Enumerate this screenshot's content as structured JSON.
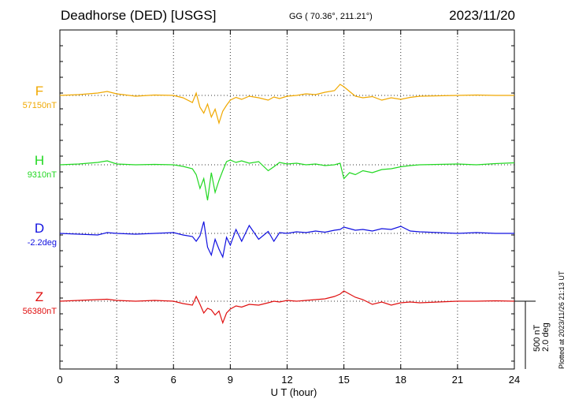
{
  "header": {
    "title": "Deadhorse (DED)  [USGS]",
    "coords": "GG ( 70.36°, 211.21°)",
    "date": "2023/11/20"
  },
  "axis": {
    "xlabel": "U T (hour)",
    "xticks": [
      "0",
      "3",
      "6",
      "9",
      "12",
      "15",
      "18",
      "21",
      "24"
    ]
  },
  "scale": {
    "nt": "500 nT",
    "deg": "2.0 deg"
  },
  "plotted_note": "Plotted at 2023/11/26 21:13 UT",
  "chart_data": {
    "type": "line",
    "x_range": [
      0,
      24
    ],
    "x_unit": "hour UT",
    "grid": true,
    "series": [
      {
        "name": "F",
        "baseline_label": "57150nT",
        "color": "#f0a800",
        "x": [
          0,
          1,
          2,
          2.5,
          3,
          4,
          5,
          6,
          6.5,
          7,
          7.2,
          7.4,
          7.6,
          7.8,
          8.0,
          8.2,
          8.4,
          8.6,
          8.8,
          9.0,
          9.3,
          9.6,
          10,
          10.5,
          11,
          11.3,
          11.6,
          12,
          12.5,
          13,
          13.5,
          14,
          14.5,
          14.8,
          15,
          15.3,
          15.6,
          16,
          16.5,
          17,
          17.5,
          18,
          18.5,
          19,
          20,
          21,
          22,
          23,
          24
        ],
        "values": [
          0,
          2,
          6,
          10,
          4,
          -2,
          1,
          0,
          -6,
          -18,
          6,
          -30,
          -45,
          -22,
          -55,
          -35,
          -70,
          -40,
          -25,
          -12,
          -5,
          -10,
          -2,
          -6,
          -12,
          -4,
          -8,
          -2,
          0,
          4,
          2,
          8,
          12,
          28,
          22,
          10,
          -2,
          -6,
          -3,
          -12,
          -6,
          -10,
          -5,
          -2,
          -1,
          0,
          1,
          0,
          0
        ]
      },
      {
        "name": "H",
        "baseline_label": "9310nT",
        "color": "#22d822",
        "x": [
          0,
          1,
          2,
          2.5,
          3,
          4,
          5,
          6,
          6.5,
          7,
          7.2,
          7.4,
          7.6,
          7.8,
          8.0,
          8.2,
          8.4,
          8.6,
          8.8,
          9.0,
          9.3,
          9.6,
          10,
          10.5,
          11,
          11.3,
          11.6,
          12,
          12.5,
          13,
          13.5,
          14,
          14.5,
          14.8,
          15,
          15.3,
          15.6,
          16,
          16.5,
          17,
          17.5,
          18,
          18.5,
          19,
          20,
          21,
          22,
          23,
          24
        ],
        "values": [
          0,
          2,
          6,
          10,
          2,
          0,
          1,
          0,
          -4,
          -10,
          -25,
          -60,
          -35,
          -90,
          -20,
          -70,
          -40,
          -15,
          8,
          12,
          6,
          10,
          4,
          8,
          -15,
          -5,
          6,
          2,
          4,
          0,
          2,
          -2,
          0,
          4,
          -35,
          -20,
          -25,
          -15,
          -20,
          -12,
          -10,
          -5,
          -2,
          0,
          1,
          2,
          0,
          3,
          5
        ]
      },
      {
        "name": "D",
        "baseline_label": "-2.2deg",
        "color": "#1010e0",
        "x": [
          0,
          1,
          2,
          2.5,
          3,
          4,
          5,
          6,
          6.5,
          7,
          7.2,
          7.4,
          7.6,
          7.8,
          8.0,
          8.2,
          8.4,
          8.6,
          8.8,
          9.0,
          9.3,
          9.6,
          10,
          10.5,
          11,
          11.3,
          11.6,
          12,
          12.5,
          13,
          13.5,
          14,
          14.5,
          14.8,
          15,
          15.3,
          15.6,
          16,
          16.5,
          17,
          17.5,
          18,
          18.5,
          19,
          20,
          21,
          22,
          23,
          24
        ],
        "values": [
          0,
          -2,
          -4,
          2,
          0,
          -2,
          0,
          2,
          -4,
          -8,
          -20,
          -6,
          30,
          -35,
          -55,
          -15,
          -40,
          -60,
          -10,
          -30,
          10,
          -20,
          20,
          -15,
          5,
          -20,
          2,
          0,
          4,
          2,
          6,
          3,
          8,
          10,
          16,
          12,
          8,
          10,
          6,
          12,
          10,
          18,
          6,
          4,
          2,
          0,
          2,
          0,
          0
        ]
      },
      {
        "name": "Z",
        "baseline_label": "56380nT",
        "color": "#e01010",
        "x": [
          0,
          1,
          2,
          2.5,
          3,
          4,
          5,
          6,
          6.5,
          7,
          7.2,
          7.4,
          7.6,
          7.8,
          8.0,
          8.2,
          8.4,
          8.6,
          8.8,
          9.0,
          9.3,
          9.6,
          10,
          10.5,
          11,
          11.3,
          11.6,
          12,
          12.5,
          13,
          13.5,
          14,
          14.5,
          14.8,
          15,
          15.3,
          15.6,
          16,
          16.5,
          17,
          17.5,
          18,
          18.5,
          19,
          20,
          21,
          22,
          23,
          24
        ],
        "values": [
          0,
          2,
          4,
          5,
          2,
          0,
          2,
          0,
          -6,
          -10,
          12,
          -8,
          -30,
          -18,
          -22,
          -35,
          -25,
          -55,
          -30,
          -20,
          -12,
          -15,
          -8,
          -10,
          -4,
          0,
          -2,
          2,
          0,
          2,
          4,
          6,
          12,
          18,
          26,
          18,
          10,
          4,
          -8,
          -2,
          -10,
          -4,
          -2,
          -4,
          -2,
          0,
          0,
          1,
          0
        ]
      }
    ]
  }
}
